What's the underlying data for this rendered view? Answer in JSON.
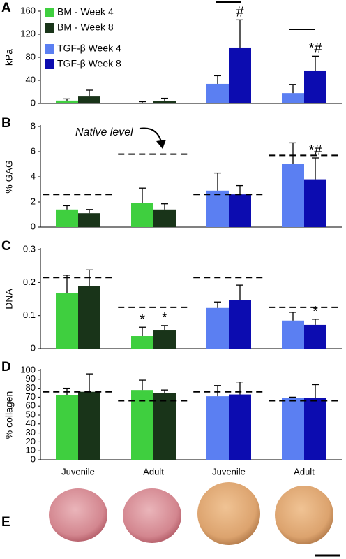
{
  "chart_data": [
    {
      "type": "bar",
      "panel_label": "A",
      "ylabel": "kPa",
      "categories": [
        null,
        null,
        null,
        null
      ],
      "ylim": [
        0,
        160
      ],
      "yticks": [
        0,
        40,
        80,
        120,
        160
      ],
      "legend": "top-left",
      "series": [
        {
          "name": "BM - Week 4",
          "color": "#3fcf3f",
          "values": [
            5,
            1,
            null,
            null
          ],
          "errors": [
            3,
            2,
            null,
            null
          ]
        },
        {
          "name": "BM - Week 8",
          "color": "#193419",
          "values": [
            12,
            4,
            null,
            null
          ],
          "errors": [
            11,
            5,
            null,
            null
          ]
        },
        {
          "name": "TGF-β Week 4",
          "color": "#5b7ff2",
          "values": [
            null,
            null,
            34,
            18
          ],
          "errors": [
            null,
            null,
            14,
            15
          ]
        },
        {
          "name": "TGF-β Week 8",
          "color": "#0c0cb0",
          "values": [
            null,
            null,
            97,
            57
          ],
          "errors": [
            null,
            null,
            48,
            25
          ],
          "significance": [
            null,
            null,
            "#",
            "*#"
          ]
        }
      ]
    },
    {
      "type": "bar",
      "panel_label": "B",
      "ylabel": "% GAG",
      "categories": [
        null,
        null,
        null,
        null
      ],
      "ylim": [
        0,
        8
      ],
      "yticks": [
        0,
        2,
        4,
        6,
        8
      ],
      "annotation": "Native level",
      "native_level": [
        2.6,
        5.8,
        2.6,
        5.7
      ],
      "series": [
        {
          "color": "#3fcf3f",
          "values": [
            1.4,
            1.9,
            null,
            null
          ],
          "errors": [
            0.3,
            1.2,
            null,
            null
          ]
        },
        {
          "color": "#193419",
          "values": [
            1.1,
            1.4,
            null,
            null
          ],
          "errors": [
            0.3,
            0.45,
            null,
            null
          ]
        },
        {
          "color": "#5b7ff2",
          "values": [
            null,
            null,
            2.9,
            5.05
          ],
          "errors": [
            null,
            null,
            1.4,
            1.65
          ]
        },
        {
          "color": "#0c0cb0",
          "values": [
            null,
            null,
            2.6,
            3.8
          ],
          "errors": [
            null,
            null,
            0.7,
            1.7
          ],
          "significance": [
            null,
            null,
            null,
            "*#"
          ]
        }
      ]
    },
    {
      "type": "bar",
      "panel_label": "C",
      "ylabel": "DNA",
      "categories": [
        null,
        null,
        null,
        null
      ],
      "ylim": [
        0,
        0.3
      ],
      "yticks": [
        0,
        0.1,
        0.2,
        0.3
      ],
      "native_level": [
        0.215,
        0.125,
        0.215,
        0.125
      ],
      "series": [
        {
          "color": "#3fcf3f",
          "values": [
            0.167,
            0.038,
            null,
            null
          ],
          "errors": [
            0.055,
            0.027,
            null,
            null
          ],
          "significance": [
            null,
            "*",
            null,
            null
          ]
        },
        {
          "color": "#193419",
          "values": [
            0.19,
            0.057,
            null,
            null
          ],
          "errors": [
            0.048,
            0.013,
            null,
            null
          ],
          "significance": [
            null,
            "*",
            null,
            null
          ]
        },
        {
          "color": "#5b7ff2",
          "values": [
            null,
            null,
            0.123,
            0.085
          ],
          "errors": [
            null,
            null,
            0.018,
            0.025
          ]
        },
        {
          "color": "#0c0cb0",
          "values": [
            null,
            null,
            0.146,
            0.072
          ],
          "errors": [
            null,
            null,
            0.046,
            0.017
          ],
          "significance": [
            null,
            null,
            null,
            "*"
          ]
        }
      ]
    },
    {
      "type": "bar",
      "panel_label": "D",
      "ylabel": "% collagen",
      "categories": [
        "Juvenile",
        "Adult",
        "Juvenile",
        "Adult"
      ],
      "ylim": [
        0,
        100
      ],
      "yticks": [
        0,
        10,
        20,
        30,
        40,
        50,
        60,
        70,
        80,
        90,
        100
      ],
      "native_level": [
        76,
        66,
        76,
        66
      ],
      "series": [
        {
          "color": "#3fcf3f",
          "values": [
            72,
            78,
            null,
            null
          ],
          "errors": [
            8,
            11,
            null,
            null
          ]
        },
        {
          "color": "#193419",
          "values": [
            76,
            75,
            null,
            null
          ],
          "errors": [
            20,
            3,
            null,
            null
          ]
        },
        {
          "color": "#5b7ff2",
          "values": [
            null,
            null,
            71,
            69
          ],
          "errors": [
            null,
            null,
            12,
            1
          ]
        },
        {
          "color": "#0c0cb0",
          "values": [
            null,
            null,
            73,
            69
          ],
          "errors": [
            null,
            null,
            14,
            15
          ]
        }
      ]
    }
  ],
  "photo_panel": {
    "label": "E"
  }
}
